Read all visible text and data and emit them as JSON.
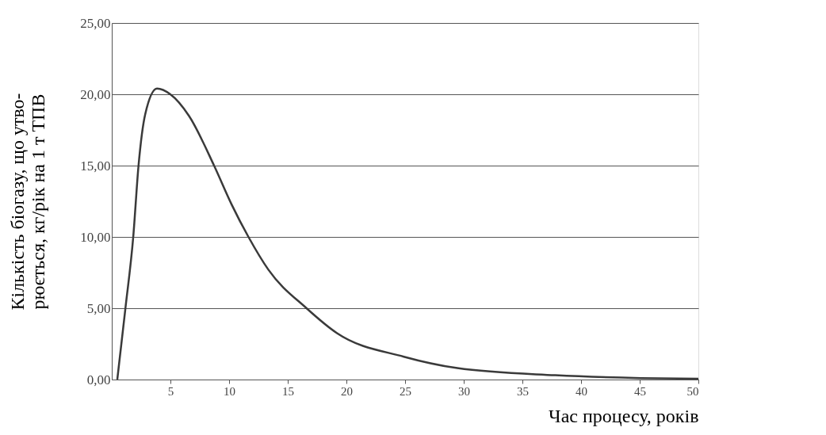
{
  "chart_data": {
    "type": "line",
    "xlabel": "Час процесу, років",
    "ylabel": "Кількість біогазу, що утво-\nрюється, кг/рік на 1 т ТПВ",
    "x": [
      0.47,
      1.15,
      1.83,
      2.28,
      2.85,
      3.86,
      4.99,
      6.57,
      8.72,
      10.2,
      11.65,
      13.35,
      16.6,
      19.2,
      24.9,
      29.45,
      37.8,
      45.1,
      50.0
    ],
    "series": [
      {
        "color": "#3a3a3a",
        "values": [
          0,
          4.9,
          10,
          15,
          18.6,
          20.4,
          20.0,
          18.5,
          15,
          12.3,
          10,
          7.7,
          5,
          3.25,
          1.6,
          0.8,
          0.3,
          0.1,
          0.05
        ]
      }
    ],
    "xlim": [
      0,
      50
    ],
    "xticks": [
      5,
      10,
      15,
      20,
      25,
      30,
      35,
      40,
      45,
      50
    ],
    "ylim": [
      0,
      25
    ],
    "yticks": [
      {
        "value": 0,
        "label": "0,00"
      },
      {
        "value": 5,
        "label": "5,00"
      },
      {
        "value": 10,
        "label": "10,00"
      },
      {
        "value": 15,
        "label": "15,00"
      },
      {
        "value": 20,
        "label": "20,00"
      },
      {
        "value": 25,
        "label": "25,00"
      }
    ],
    "grid": "y",
    "marker": "none",
    "line_style": "solid"
  }
}
